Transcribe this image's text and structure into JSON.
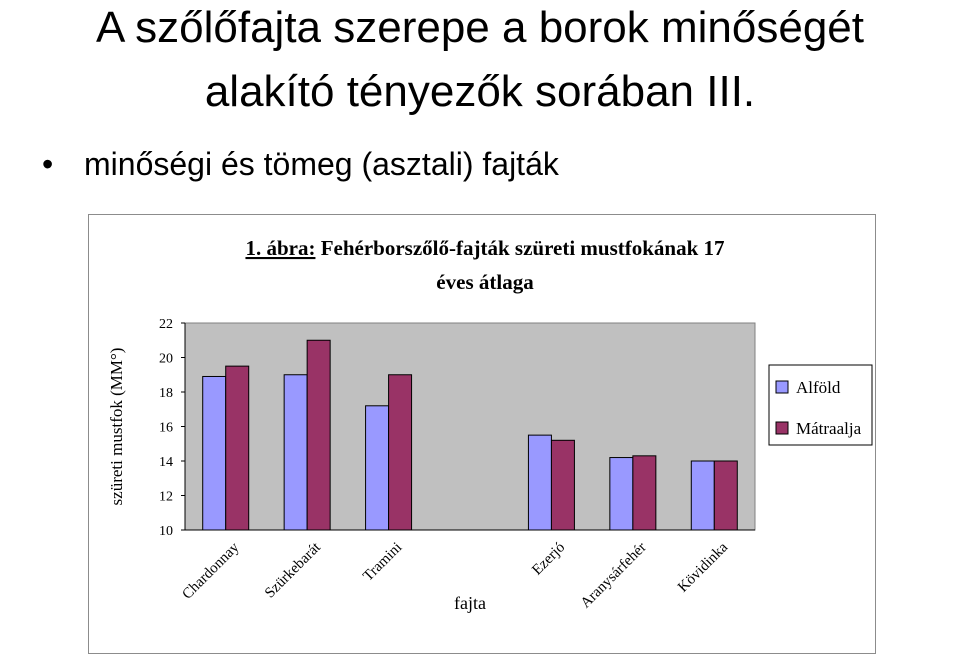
{
  "slide": {
    "title_line1": "A szőlőfajta szerepe a borok minőségét",
    "title_line2": "alakító tényezők sorában III.",
    "bullet": "•",
    "bullet_text": "minőségi és tömeg (asztali) fajták"
  },
  "chart_data": {
    "type": "bar",
    "title_prefix": "1. ábra:",
    "title_main": " Fehérborszőlő-fajták szüreti mustfokának 17",
    "title_line2": "éves átlaga",
    "xlabel": "fajta",
    "ylabel": "szüreti mustfok (MM°)",
    "ylim": [
      10,
      22
    ],
    "yticks": [
      "10",
      "12",
      "14",
      "16",
      "18",
      "20",
      "22"
    ],
    "categories": [
      "Chardonnay",
      "Szürkebarát",
      "Tramini",
      "",
      "Ezerjó",
      "Aranysárfehér",
      "Kövidinka"
    ],
    "series": [
      {
        "name": "Alföld",
        "color": "#9999ff",
        "values": [
          18.9,
          19.0,
          17.2,
          null,
          15.5,
          14.2,
          14.0
        ]
      },
      {
        "name": "Mátraalja",
        "color": "#993366",
        "values": [
          19.5,
          21.0,
          19.0,
          null,
          15.2,
          14.3,
          14.0
        ]
      }
    ],
    "plot_background": "#c0c0c0",
    "grid": false,
    "legend_position": "right"
  }
}
